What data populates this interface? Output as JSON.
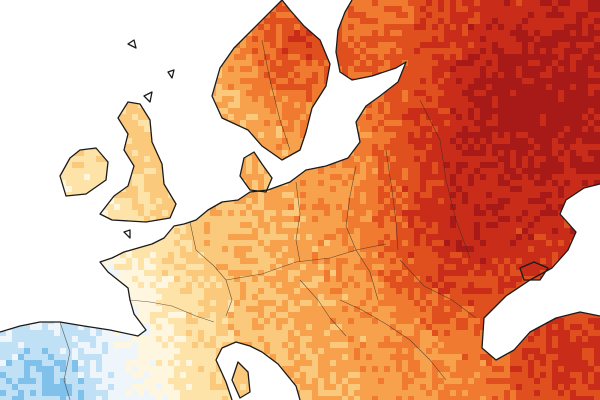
{
  "map": {
    "type": "choropleth",
    "region": "Europe",
    "colors": {
      "sea": "#ffffff",
      "coast": "#1a1a1a",
      "border": "#3a2a20",
      "scale": [
        "#7fc1ea",
        "#bfe0f5",
        "#eef6fb",
        "#fff6df",
        "#fde3a8",
        "#fbc97b",
        "#f7a14d",
        "#ef7a30",
        "#e0501f",
        "#c92d1a",
        "#a81a18"
      ]
    }
  }
}
